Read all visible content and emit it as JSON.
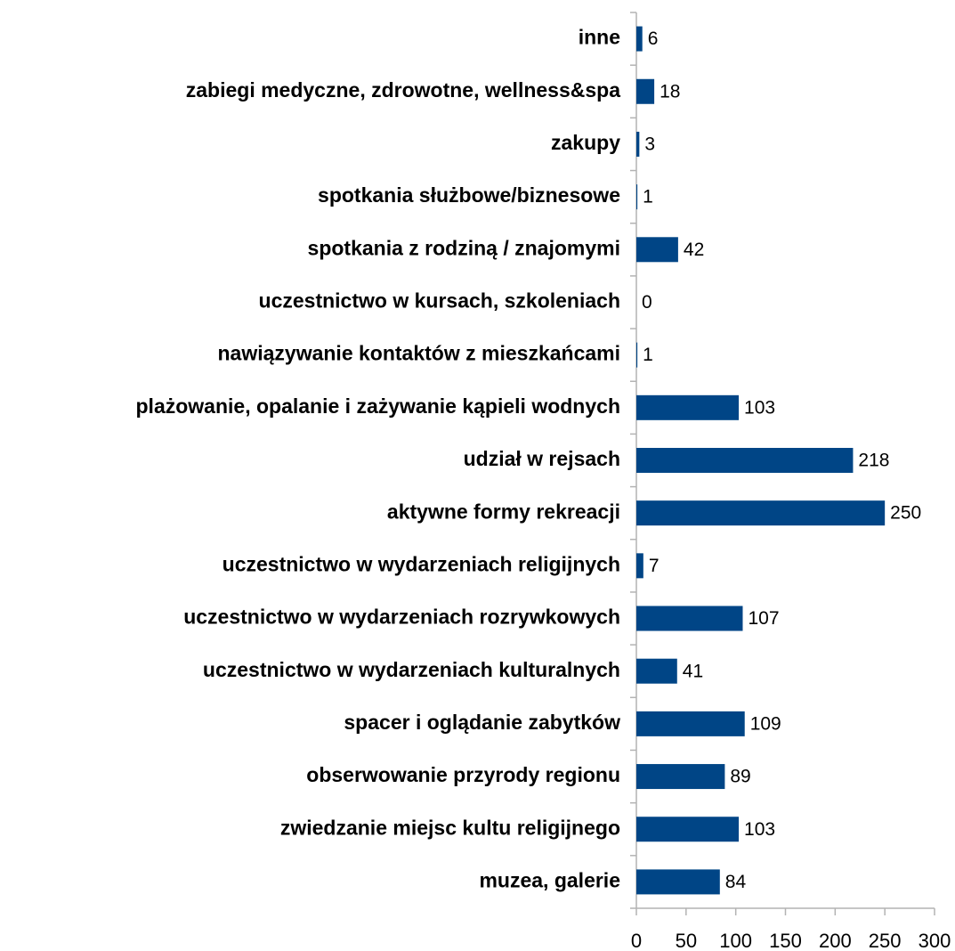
{
  "chart_data": {
    "type": "bar",
    "orientation": "horizontal",
    "categories": [
      "inne",
      "zabiegi medyczne, zdrowotne, wellness&spa",
      "zakupy",
      "spotkania służbowe/biznesowe",
      "spotkania z rodziną / znajomymi",
      "uczestnictwo w kursach, szkoleniach",
      "nawiązywanie kontaktów z mieszkańcami",
      "plażowanie, opalanie i zażywanie kąpieli wodnych",
      "udział w rejsach",
      "aktywne formy rekreacji",
      "uczestnictwo w wydarzeniach religijnych",
      "uczestnictwo w wydarzeniach rozrywkowych",
      "uczestnictwo w wydarzeniach kulturalnych",
      "spacer i oglądanie zabytków",
      "obserwowanie przyrody regionu",
      "zwiedzanie miejsc kultu religijnego",
      "muzea, galerie"
    ],
    "values": [
      6,
      18,
      3,
      1,
      42,
      0,
      1,
      103,
      218,
      250,
      7,
      107,
      41,
      109,
      89,
      103,
      84
    ],
    "color": "#004586",
    "xlim": [
      0,
      300
    ],
    "xticks": [
      0,
      50,
      100,
      150,
      200,
      250,
      300
    ]
  }
}
